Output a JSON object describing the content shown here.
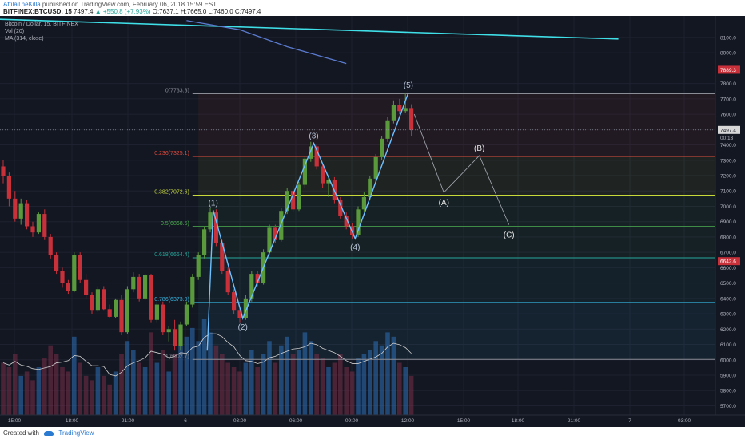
{
  "header": {
    "author": "AttilaTheKilla",
    "published": "published on TradingView.com, February 06, 2018 15:59 EST",
    "symbol": "BITFINEX:BTCUSD, 15",
    "last": "7497.4",
    "change": "▲ +550.8 (+7.93%)",
    "ohlc": "O:7637.1 H:7665.0 L:7460.0 C:7497.4"
  },
  "legend": {
    "title": "Bitcoin / Dollar, 15, BITFINEX",
    "vol": "Vol (20)",
    "ma": "MA (314, close)"
  },
  "footer": {
    "created_with": "Created with",
    "brand": "TradingView"
  },
  "colors": {
    "background": "#131722",
    "up": "#5b9a3c",
    "down": "#c8303a",
    "wave": "#6ec0ff",
    "trendline": "#3fe0e8",
    "ma": "#5b7bd0"
  },
  "chart_data": {
    "type": "candlestick",
    "title": "Bitcoin / Dollar, 15, BITFINEX",
    "ylim": [
      5640,
      8240
    ],
    "y_ticks": [
      5700,
      5800,
      5900,
      6000,
      6100,
      6200,
      6300,
      6400,
      6500,
      6600,
      6700,
      6800,
      6900,
      7000,
      7100,
      7200,
      7300,
      7400,
      7500,
      7600,
      7700,
      7800,
      8000,
      8100
    ],
    "x_ticks": [
      "15:00",
      "18:00",
      "21:00",
      "6",
      "03:00",
      "06:00",
      "09:00",
      "12:00",
      "15:00",
      "18:00",
      "21:00",
      "7",
      "03:00"
    ],
    "price_labels": {
      "last": "7497.4",
      "last_timer": "00:13",
      "red_top": "7889.3",
      "red_mid": "6642.6"
    },
    "fib_levels": [
      {
        "label": "0(7733.3)",
        "value": 7733.3,
        "color": "#8a8d96"
      },
      {
        "label": "0.236(7325.1)",
        "value": 7325.1,
        "color": "#e04a3c"
      },
      {
        "label": "0.382(7072.6)",
        "value": 7072.6,
        "color": "#c8d93a"
      },
      {
        "label": "0.5(6868.5)",
        "value": 6868.5,
        "color": "#4caf50"
      },
      {
        "label": "0.618(6664.4)",
        "value": 6664.4,
        "color": "#26a69a"
      },
      {
        "label": "0.786(6373.9)",
        "value": 6373.9,
        "color": "#36b5e0"
      },
      {
        "label": "1(6002.7)",
        "value": 6002.7,
        "color": "#8a8d96"
      }
    ],
    "wave_labels": [
      {
        "label": "(1)",
        "t": 35.5,
        "price": 6975
      },
      {
        "label": "(2)",
        "t": 40.5,
        "price": 6270
      },
      {
        "label": "(3)",
        "t": 52.5,
        "price": 7410
      },
      {
        "label": "(4)",
        "t": 59.5,
        "price": 6790
      },
      {
        "label": "(5)",
        "t": 68.5,
        "price": 7740
      },
      {
        "label": "(A)",
        "t": 74.5,
        "price": 7080
      },
      {
        "label": "(B)",
        "t": 80.5,
        "price": 7330
      },
      {
        "label": "(C)",
        "t": 85.5,
        "price": 6870
      }
    ],
    "candles": [
      [
        7260,
        7300,
        7150,
        7200
      ],
      [
        7200,
        7220,
        7000,
        7050
      ],
      [
        7050,
        7100,
        6900,
        6920
      ],
      [
        6920,
        7050,
        6880,
        7020
      ],
      [
        7020,
        7040,
        6850,
        6870
      ],
      [
        6870,
        6900,
        6800,
        6830
      ],
      [
        6830,
        6960,
        6820,
        6950
      ],
      [
        6950,
        6980,
        6780,
        6800
      ],
      [
        6800,
        6820,
        6660,
        6680
      ],
      [
        6680,
        6700,
        6560,
        6580
      ],
      [
        6580,
        6600,
        6470,
        6500
      ],
      [
        6500,
        6520,
        6430,
        6450
      ],
      [
        6450,
        6700,
        6440,
        6680
      ],
      [
        6680,
        6700,
        6500,
        6520
      ],
      [
        6520,
        6560,
        6400,
        6420
      ],
      [
        6420,
        6440,
        6300,
        6320
      ],
      [
        6320,
        6480,
        6310,
        6460
      ],
      [
        6460,
        6480,
        6320,
        6330
      ],
      [
        6330,
        6360,
        6270,
        6280
      ],
      [
        6280,
        6400,
        6270,
        6390
      ],
      [
        6390,
        6420,
        6160,
        6180
      ],
      [
        6180,
        6480,
        6170,
        6460
      ],
      [
        6460,
        6570,
        6440,
        6540
      ],
      [
        6540,
        6560,
        6380,
        6400
      ],
      [
        6400,
        6560,
        6390,
        6550
      ],
      [
        6550,
        6560,
        6240,
        6260
      ],
      [
        6260,
        6380,
        6240,
        6360
      ],
      [
        6360,
        6380,
        6160,
        6180
      ],
      [
        6180,
        6220,
        6120,
        6200
      ],
      [
        6200,
        6260,
        6060,
        6090
      ],
      [
        6090,
        6250,
        6060,
        6230
      ],
      [
        6230,
        6380,
        6220,
        6360
      ],
      [
        6360,
        6560,
        6340,
        6540
      ],
      [
        6540,
        6700,
        6520,
        6680
      ],
      [
        6680,
        6870,
        6660,
        6850
      ],
      [
        6850,
        6990,
        6830,
        6960
      ],
      [
        6960,
        6980,
        6740,
        6760
      ],
      [
        6760,
        6780,
        6560,
        6580
      ],
      [
        6580,
        6600,
        6420,
        6440
      ],
      [
        6440,
        6460,
        6300,
        6320
      ],
      [
        6320,
        6340,
        6240,
        6270
      ],
      [
        6270,
        6420,
        6260,
        6400
      ],
      [
        6400,
        6580,
        6380,
        6560
      ],
      [
        6560,
        6580,
        6480,
        6500
      ],
      [
        6500,
        6720,
        6490,
        6700
      ],
      [
        6700,
        6880,
        6680,
        6860
      ],
      [
        6860,
        6880,
        6760,
        6780
      ],
      [
        6780,
        6990,
        6770,
        6970
      ],
      [
        6970,
        7120,
        6950,
        7100
      ],
      [
        7100,
        7140,
        6960,
        6980
      ],
      [
        6980,
        7160,
        6970,
        7140
      ],
      [
        7140,
        7330,
        7120,
        7310
      ],
      [
        7310,
        7420,
        7290,
        7390
      ],
      [
        7390,
        7400,
        7240,
        7260
      ],
      [
        7260,
        7280,
        7120,
        7150
      ],
      [
        7150,
        7200,
        7060,
        7170
      ],
      [
        7170,
        7190,
        7020,
        7040
      ],
      [
        7040,
        7060,
        6920,
        6940
      ],
      [
        6940,
        6960,
        6850,
        6870
      ],
      [
        6870,
        6890,
        6790,
        6810
      ],
      [
        6810,
        7000,
        6800,
        6980
      ],
      [
        6980,
        7090,
        6960,
        7060
      ],
      [
        7060,
        7200,
        7040,
        7180
      ],
      [
        7180,
        7340,
        7160,
        7320
      ],
      [
        7320,
        7460,
        7300,
        7440
      ],
      [
        7440,
        7580,
        7420,
        7560
      ],
      [
        7560,
        7690,
        7540,
        7660
      ],
      [
        7660,
        7700,
        7600,
        7620
      ],
      [
        7620,
        7740,
        7610,
        7640
      ],
      [
        7640,
        7665,
        7460,
        7497
      ]
    ],
    "volume": [
      60,
      55,
      70,
      45,
      50,
      40,
      55,
      65,
      80,
      70,
      55,
      50,
      90,
      60,
      45,
      40,
      55,
      45,
      35,
      50,
      70,
      85,
      75,
      60,
      55,
      95,
      60,
      75,
      50,
      70,
      80,
      90,
      100,
      85,
      110,
      95,
      80,
      70,
      60,
      55,
      50,
      60,
      75,
      55,
      70,
      85,
      60,
      80,
      90,
      70,
      75,
      95,
      85,
      70,
      65,
      55,
      60,
      70,
      55,
      50,
      65,
      70,
      75,
      85,
      80,
      95,
      90,
      60,
      55,
      45
    ],
    "ma_line": [
      [
        -2,
        8210
      ],
      [
        7,
        8150
      ],
      [
        15,
        8040
      ],
      [
        25,
        7930
      ]
    ],
    "trendline": [
      [
        -2,
        8220
      ],
      [
        104,
        8090
      ]
    ],
    "wave_path": [
      [
        34.5,
        6060
      ],
      [
        35.5,
        6975
      ],
      [
        40.5,
        6270
      ],
      [
        52.5,
        7410
      ],
      [
        59.5,
        6790
      ],
      [
        68.5,
        7740
      ]
    ],
    "projection": [
      [
        69.5,
        7600
      ],
      [
        74.5,
        7090
      ],
      [
        80.5,
        7330
      ],
      [
        85.5,
        6880
      ]
    ]
  }
}
